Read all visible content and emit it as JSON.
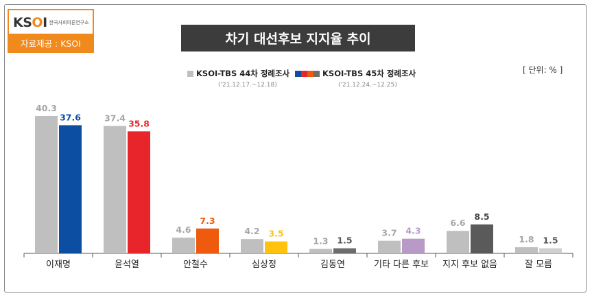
{
  "logo": {
    "mark_prefix": "KS",
    "mark_o": "O",
    "mark_suffix": "I",
    "org_name": "한국사회여론연구소",
    "source": "자료제공 : KSOI"
  },
  "title": "차기 대선후보 지지율 추이",
  "unit": "[ 단위: % ]",
  "legend": [
    {
      "label": "KSOI-TBS 44차 정례조사",
      "dates": "('21.12.17.~12.18)"
    },
    {
      "label": "KSOI-TBS 45차 정례조사",
      "dates": "('21.12.24.~12.25)"
    }
  ],
  "colors": {
    "accent": "#f08a1c",
    "previous": "#bfbfbf",
    "axis": "#555555"
  },
  "chart_data": {
    "type": "bar",
    "categories": [
      "이재명",
      "윤석열",
      "안철수",
      "심상정",
      "김동연",
      "기타 다른 후보",
      "지지 후보 없음",
      "잘 모름"
    ],
    "series": [
      {
        "name": "KSOI-TBS 44차 정례조사",
        "values": [
          40.3,
          37.4,
          4.6,
          4.2,
          1.3,
          3.7,
          6.6,
          1.8
        ],
        "color": "#bfbfbf"
      },
      {
        "name": "KSOI-TBS 45차 정례조사",
        "values": [
          37.6,
          35.8,
          7.3,
          3.5,
          1.5,
          4.3,
          8.5,
          1.5
        ],
        "colors": [
          "#0b4ea2",
          "#e8252b",
          "#ee5a0e",
          "#ffc20e",
          "#6d6d6d",
          "#b89ac6",
          "#5a5a5a",
          "#d0d0d0"
        ],
        "label_colors": [
          "#0b4ea2",
          "#e8252b",
          "#ee5a0e",
          "#ffc20e",
          "#555555",
          "#b89ac6",
          "#444444",
          "#555555"
        ]
      }
    ],
    "xlabel": "",
    "ylabel": "",
    "ylim": [
      0,
      45
    ],
    "grid": false,
    "legend_position": "top-center"
  }
}
